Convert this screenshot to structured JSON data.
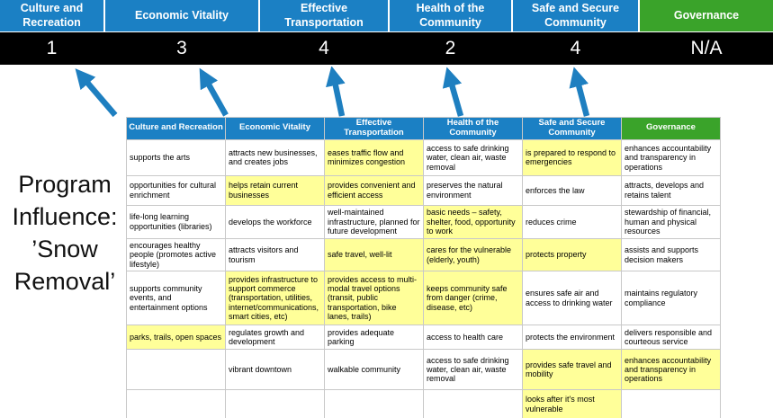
{
  "title": {
    "lines": [
      "Program",
      "Influence:",
      "’Snow",
      "Removal’"
    ]
  },
  "colors": {
    "pillar_blue": "#1b80c4",
    "governance_green": "#3aa32a",
    "score_band_bg": "#000000",
    "highlight_yellow": "#ffff99",
    "arrow_blue": "#1e7fc0"
  },
  "pillars": [
    {
      "label": "Culture and Recreation",
      "score": "1",
      "color": "#1b80c4",
      "arrow": true
    },
    {
      "label": "Economic Vitality",
      "score": "3",
      "color": "#1b80c4",
      "arrow": true
    },
    {
      "label": "Effective Transportation",
      "score": "4",
      "color": "#1b80c4",
      "arrow": true
    },
    {
      "label": "Health of the Community",
      "score": "2",
      "color": "#1b80c4",
      "arrow": true
    },
    {
      "label": "Safe and Secure Community",
      "score": "4",
      "color": "#1b80c4",
      "arrow": true
    },
    {
      "label": "Governance",
      "score": "N/A",
      "color": "#3aa32a",
      "arrow": false
    }
  ],
  "table": {
    "headers": [
      {
        "label": "Culture and Recreation",
        "color": "#1b80c4"
      },
      {
        "label": "Economic Vitality",
        "color": "#1b80c4"
      },
      {
        "label": "Effective Transportation",
        "color": "#1b80c4"
      },
      {
        "label": "Health of the Community",
        "color": "#1b80c4"
      },
      {
        "label": "Safe and Secure Community",
        "color": "#1b80c4"
      },
      {
        "label": "Governance",
        "color": "#3aa32a"
      }
    ],
    "rows": [
      {
        "cells": [
          {
            "text": "supports the arts",
            "hl": false
          },
          {
            "text": "attracts new businesses, and creates jobs",
            "hl": false
          },
          {
            "text": "eases traffic flow and minimizes congestion",
            "hl": true
          },
          {
            "text": "access to safe drinking water, clean air, waste removal",
            "hl": false
          },
          {
            "text": "is prepared to respond to emergencies",
            "hl": true
          },
          {
            "text": "enhances accountability and transparency in operations",
            "hl": false
          }
        ]
      },
      {
        "cells": [
          {
            "text": "opportunities for cultural enrichment",
            "hl": false
          },
          {
            "text": "helps retain current businesses",
            "hl": true
          },
          {
            "text": "provides convenient and efficient access",
            "hl": true
          },
          {
            "text": "preserves the natural environment",
            "hl": false
          },
          {
            "text": "enforces the law",
            "hl": false
          },
          {
            "text": "attracts, develops and retains talent",
            "hl": false
          }
        ]
      },
      {
        "cells": [
          {
            "text": "life-long learning opportunities (libraries)",
            "hl": false
          },
          {
            "text": "develops the workforce",
            "hl": false
          },
          {
            "text": "well-maintained infrastructure, planned for future development",
            "hl": false
          },
          {
            "text": "basic needs – safety, shelter, food, opportunity to work",
            "hl": true
          },
          {
            "text": "reduces crime",
            "hl": false
          },
          {
            "text": "stewardship of financial, human and physical resources",
            "hl": false
          }
        ]
      },
      {
        "cells": [
          {
            "text": "encourages healthy people (promotes active lifestyle)",
            "hl": false
          },
          {
            "text": "attracts visitors and tourism",
            "hl": false
          },
          {
            "text": "safe travel, well-lit",
            "hl": true
          },
          {
            "text": "cares for the vulnerable (elderly, youth)",
            "hl": true
          },
          {
            "text": "protects property",
            "hl": true
          },
          {
            "text": "assists and supports decision makers",
            "hl": false
          }
        ]
      },
      {
        "cells": [
          {
            "text": "supports community events, and entertainment options",
            "hl": false
          },
          {
            "text": "provides infrastructure to support commerce (transportation, utilities, internet/communications, smart cities, etc)",
            "hl": true
          },
          {
            "text": "provides access to multi-modal travel options (transit, public transportation, bike lanes, trails)",
            "hl": true
          },
          {
            "text": "keeps community safe from danger (crime, disease, etc)",
            "hl": true
          },
          {
            "text": "ensures safe air and access to drinking water",
            "hl": false
          },
          {
            "text": "maintains regulatory compliance",
            "hl": false
          }
        ]
      },
      {
        "cells": [
          {
            "text": "parks, trails, open spaces",
            "hl": true
          },
          {
            "text": "regulates growth and development",
            "hl": false
          },
          {
            "text": "provides adequate parking",
            "hl": false
          },
          {
            "text": "access to health care",
            "hl": false
          },
          {
            "text": "protects the environment",
            "hl": false
          },
          {
            "text": "delivers responsible and courteous service",
            "hl": false
          }
        ]
      },
      {
        "cells": [
          {
            "text": "",
            "hl": false
          },
          {
            "text": "vibrant downtown",
            "hl": false
          },
          {
            "text": "walkable community",
            "hl": false
          },
          {
            "text": "access to safe drinking water, clean air, waste removal",
            "hl": false
          },
          {
            "text": "provides safe travel and mobility",
            "hl": true
          },
          {
            "text": "enhances accountability and transparency in operations",
            "hl": true
          }
        ]
      },
      {
        "cells": [
          {
            "text": "",
            "hl": false
          },
          {
            "text": "",
            "hl": false
          },
          {
            "text": "",
            "hl": false
          },
          {
            "text": "",
            "hl": false
          },
          {
            "text": "looks after it's most vulnerable",
            "hl": true
          },
          {
            "text": "",
            "hl": false
          }
        ]
      }
    ]
  }
}
